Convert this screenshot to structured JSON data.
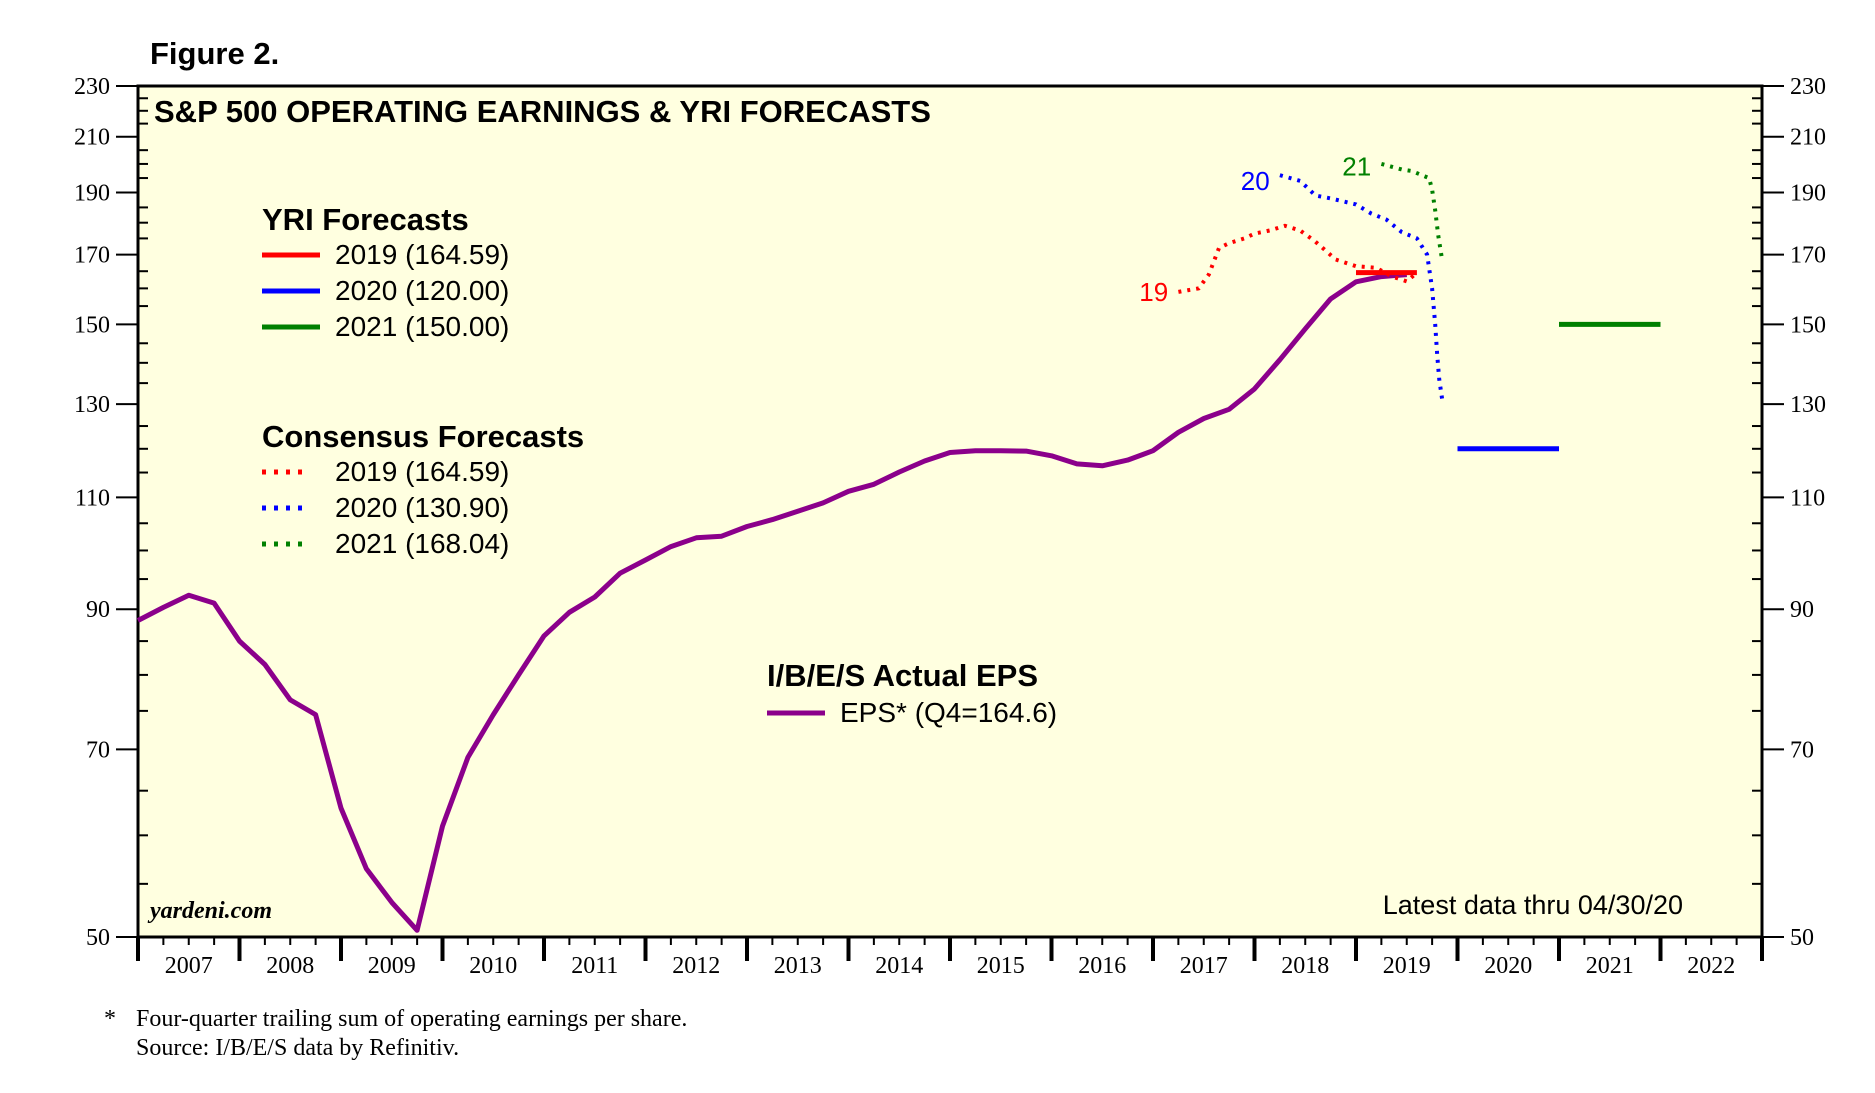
{
  "figure_label": "Figure 2.",
  "chart_data": {
    "type": "line",
    "title": "S&P 500 OPERATING EARNINGS & YRI FORECASTS",
    "y_scale": "log",
    "ylim": [
      50,
      230
    ],
    "y_ticks": [
      50,
      70,
      90,
      110,
      130,
      150,
      170,
      190,
      210,
      230
    ],
    "xlim": [
      2007,
      2023
    ],
    "x_tick_labels": [
      "2007",
      "2008",
      "2009",
      "2010",
      "2011",
      "2012",
      "2013",
      "2014",
      "2015",
      "2016",
      "2017",
      "2018",
      "2019",
      "2020",
      "2021",
      "2022"
    ],
    "legend_yri": {
      "heading": "YRI Forecasts",
      "items": [
        {
          "label": "2019 (164.59)",
          "color": "#ff0000"
        },
        {
          "label": "2020 (120.00)",
          "color": "#0000ff"
        },
        {
          "label": "2021 (150.00)",
          "color": "#008000"
        }
      ]
    },
    "legend_consensus": {
      "heading": "Consensus Forecasts",
      "items": [
        {
          "label": "2019 (164.59)",
          "color": "#ff0000"
        },
        {
          "label": "2020 (130.90)",
          "color": "#0000ff"
        },
        {
          "label": "2021 (168.04)",
          "color": "#008000"
        }
      ]
    },
    "legend_actual": {
      "heading": "I/B/E/S Actual EPS",
      "item": {
        "label": "EPS* (Q4=164.6)",
        "color": "#8b008b"
      }
    },
    "series": [
      {
        "name": "EPS",
        "style": "solid",
        "color": "#8b008b",
        "x": [
          2007.0,
          2007.25,
          2007.5,
          2007.75,
          2008.0,
          2008.25,
          2008.5,
          2008.75,
          2009.0,
          2009.25,
          2009.5,
          2009.75,
          2010.0,
          2010.25,
          2010.5,
          2010.75,
          2011.0,
          2011.25,
          2011.5,
          2011.75,
          2012.0,
          2012.25,
          2012.5,
          2012.75,
          2013.0,
          2013.25,
          2013.5,
          2013.75,
          2014.0,
          2014.25,
          2014.5,
          2014.75,
          2015.0,
          2015.25,
          2015.5,
          2015.75,
          2016.0,
          2016.25,
          2016.5,
          2016.75,
          2017.0,
          2017.25,
          2017.5,
          2017.75,
          2018.0,
          2018.25,
          2018.5,
          2018.75,
          2019.0,
          2019.25,
          2019.5
        ],
        "values": [
          88.2,
          90.3,
          92.3,
          91.0,
          85.0,
          81.5,
          76.5,
          74.5,
          63.0,
          56.5,
          53.2,
          50.6,
          61.0,
          69.0,
          74.5,
          80.0,
          85.8,
          89.5,
          92.0,
          96.0,
          98.3,
          100.7,
          102.3,
          102.6,
          104.4,
          105.7,
          107.3,
          108.9,
          111.2,
          112.6,
          115.1,
          117.4,
          119.2,
          119.6,
          119.6,
          119.5,
          118.5,
          116.8,
          116.4,
          117.6,
          119.6,
          123.6,
          126.7,
          128.8,
          133.6,
          140.8,
          148.8,
          157.0,
          161.9,
          163.4,
          164.0
        ]
      },
      {
        "name": "Consensus 2019",
        "style": "dotted",
        "color": "#ff0000",
        "x": [
          2017.25,
          2017.35,
          2017.45,
          2017.55,
          2017.65,
          2017.75,
          2017.9,
          2018.0,
          2018.15,
          2018.3,
          2018.45,
          2018.6,
          2018.8,
          2019.0,
          2019.2,
          2019.35,
          2019.5,
          2019.6
        ],
        "values": [
          159.0,
          159.5,
          160.0,
          164.0,
          172.0,
          173.5,
          175.0,
          176.5,
          177.5,
          179.0,
          177.5,
          174.0,
          168.5,
          166.5,
          166.0,
          163.5,
          162.0,
          164.6
        ]
      },
      {
        "name": "Consensus 2020",
        "style": "dotted",
        "color": "#0000ff",
        "x": [
          2018.25,
          2018.45,
          2018.6,
          2018.75,
          2019.0,
          2019.15,
          2019.3,
          2019.45,
          2019.6,
          2019.7,
          2019.75,
          2019.78,
          2019.8,
          2019.82,
          2019.85
        ],
        "values": [
          196.0,
          194.0,
          189.0,
          188.0,
          186.0,
          183.0,
          181.0,
          177.0,
          175.0,
          170.0,
          160.0,
          150.0,
          142.0,
          136.0,
          130.9
        ]
      },
      {
        "name": "Consensus 2021",
        "style": "dotted",
        "color": "#008000",
        "x": [
          2019.25,
          2019.35,
          2019.45,
          2019.55,
          2019.65,
          2019.72,
          2019.75,
          2019.78,
          2019.81,
          2019.85
        ],
        "values": [
          200.0,
          199.0,
          198.0,
          197.5,
          196.0,
          195.0,
          191.0,
          184.0,
          176.0,
          168.04
        ]
      },
      {
        "name": "YRI 2019",
        "style": "solid",
        "color": "#ff0000",
        "x": [
          2019.0,
          2019.6
        ],
        "values": [
          164.59,
          164.59
        ]
      },
      {
        "name": "YRI 2020",
        "style": "solid",
        "color": "#0000ff",
        "x": [
          2020.0,
          2021.0
        ],
        "values": [
          120.0,
          120.0
        ]
      },
      {
        "name": "YRI 2021",
        "style": "solid",
        "color": "#008000",
        "x": [
          2021.0,
          2022.0
        ],
        "values": [
          150.0,
          150.0
        ]
      }
    ],
    "series_labels": [
      {
        "text": "19",
        "color": "#ff0000",
        "x": 2017.15,
        "y": 159.0
      },
      {
        "text": "20",
        "color": "#0000ff",
        "x": 2018.15,
        "y": 194.0
      },
      {
        "text": "21",
        "color": "#008000",
        "x": 2019.15,
        "y": 199.0
      }
    ],
    "source_label": "yardeni.com",
    "latest_note": "Latest data thru 04/30/20"
  },
  "footnote": {
    "star": "*",
    "line1": "Four-quarter trailing sum of operating earnings per share.",
    "line2": "Source: I/B/E/S data by Refinitiv."
  }
}
